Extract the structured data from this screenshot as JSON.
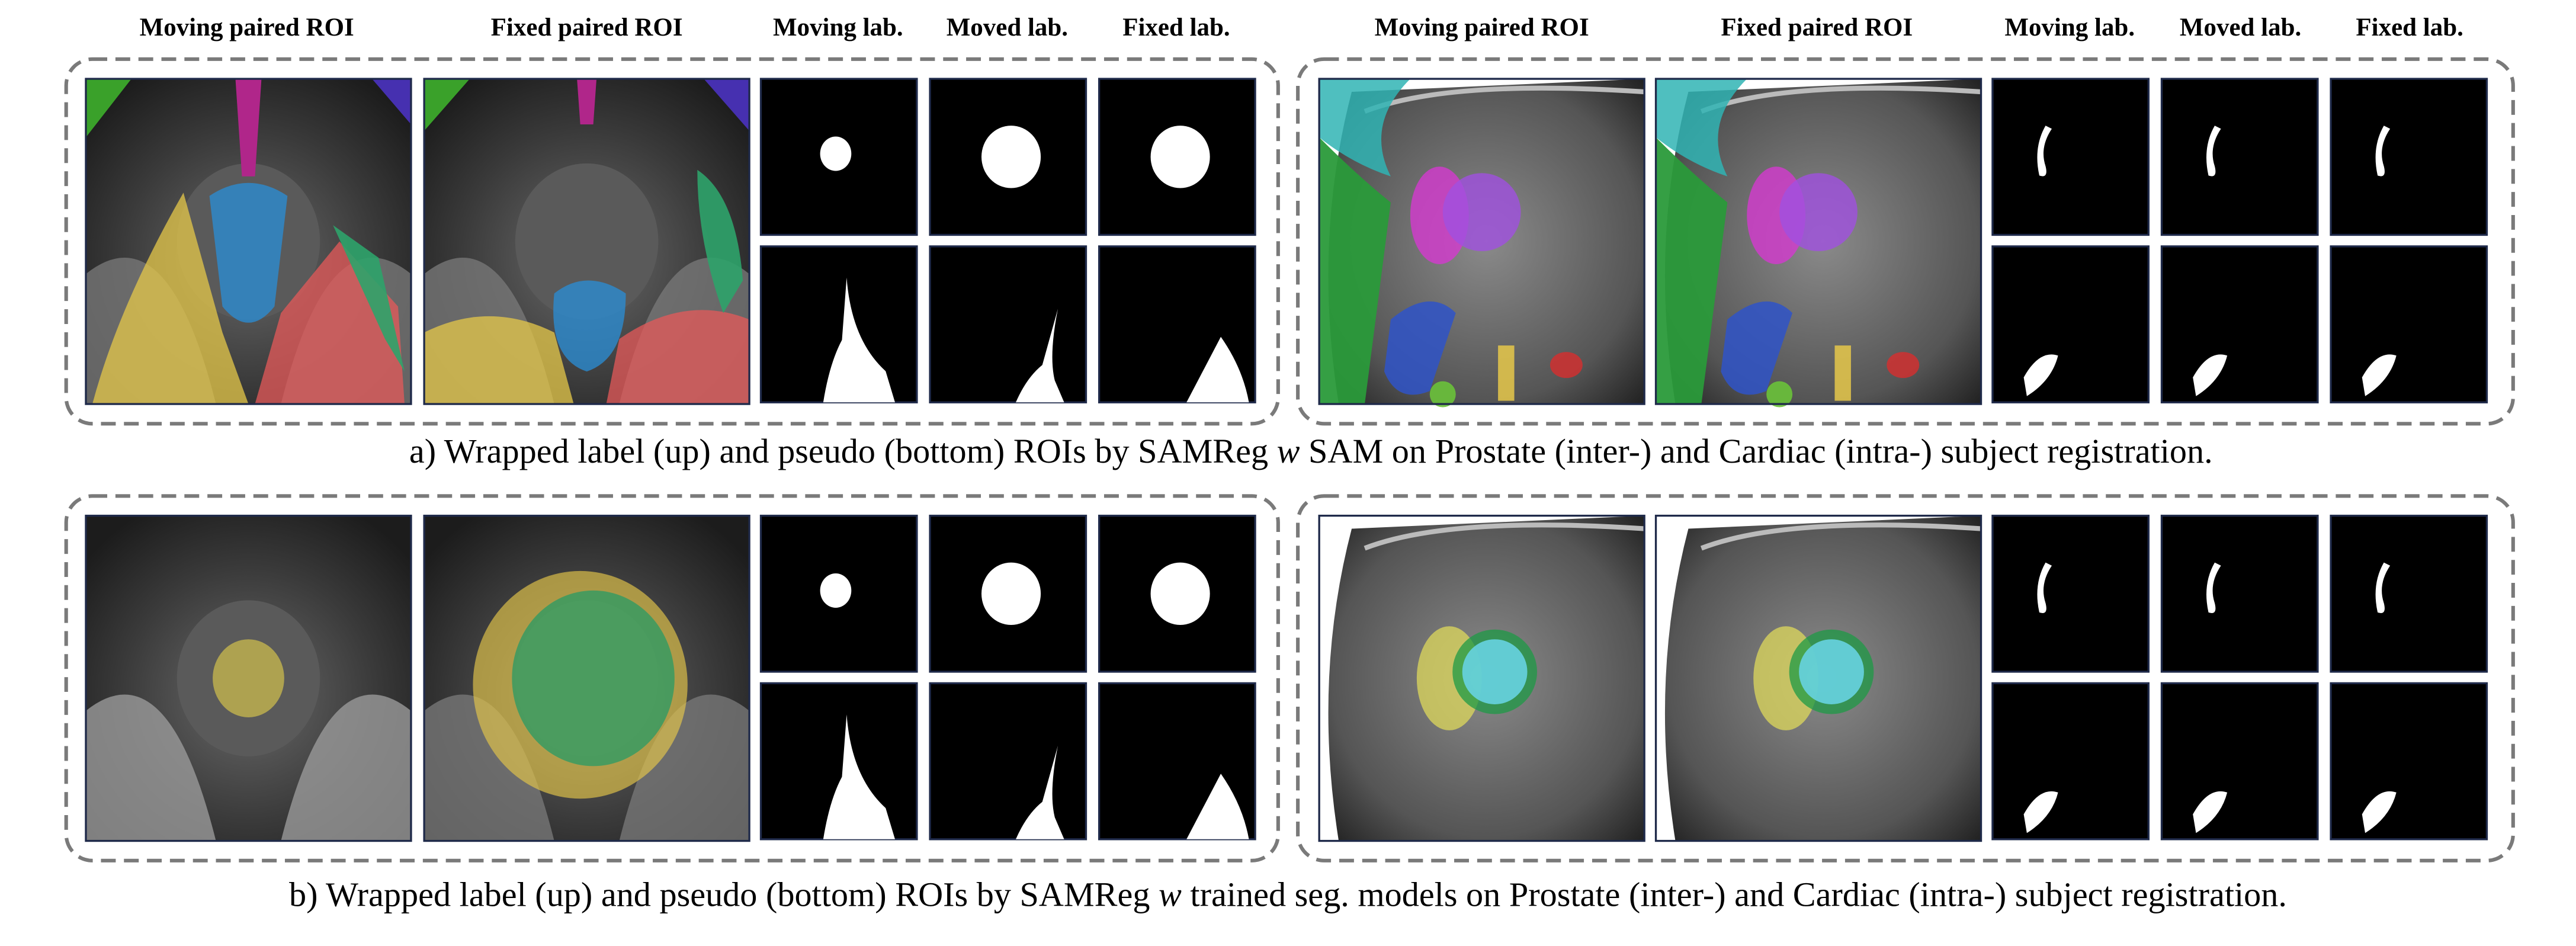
{
  "headers": {
    "left": [
      "Moving paired ROI",
      "Fixed paired ROI",
      "Moving lab.",
      "Moved lab.",
      "Fixed lab."
    ],
    "right": [
      "Moving paired ROI",
      "Fixed paired ROI",
      "Moving lab.",
      "Moved lab.",
      "Fixed lab."
    ]
  },
  "captions": [
    {
      "before": "a) Wrapped label (up) and pseudo (bottom) ROIs by SAMReg ",
      "italic": "w",
      "after": " SAM on Prostate (inter-) and Cardiac (intra-) subject registration."
    },
    {
      "before": "b) Wrapped label (up) and pseudo (bottom) ROIs by SAMReg ",
      "italic": "w",
      "after": " trained seg. models on Prostate (inter-) and Cardiac (intra-) subject registration."
    }
  ]
}
